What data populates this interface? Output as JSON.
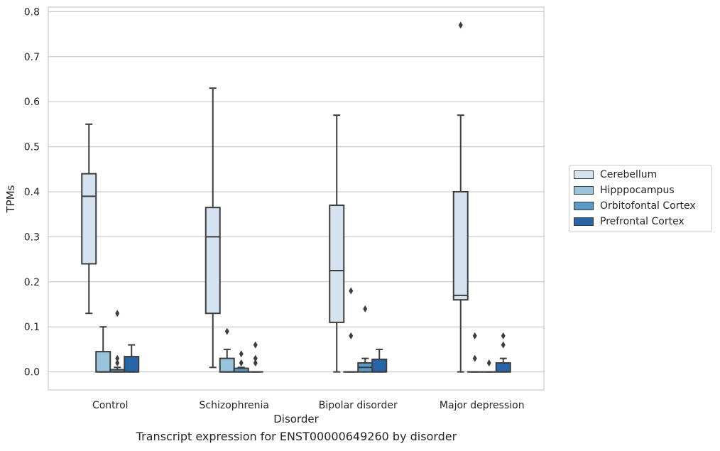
{
  "colors": {
    "Cerebellum": "#d5e3f0",
    "Hipppocampus": "#9ac3dc",
    "Orbitofontal Cortex": "#5a9ac8",
    "Prefrontal Cortex": "#2565a8"
  },
  "caption": "Transcript expression for ENST00000649260 by disorder",
  "chart_data": {
    "type": "box",
    "xlabel": "Disorder",
    "ylabel": "TPMs",
    "ylim": [
      -0.04,
      0.81
    ],
    "yticks": [
      "0.0",
      "0.1",
      "0.2",
      "0.3",
      "0.4",
      "0.5",
      "0.6",
      "0.7",
      "0.8"
    ],
    "grid": "horizontal",
    "legend_position": "right",
    "categories": [
      "Control",
      "Schizophrenia",
      "Bipolar disorder",
      "Major depression"
    ],
    "series": [
      {
        "name": "Cerebellum",
        "boxes": [
          {
            "whislo": 0.13,
            "q1": 0.24,
            "med": 0.39,
            "q3": 0.44,
            "whishi": 0.55,
            "fliers": []
          },
          {
            "whislo": 0.01,
            "q1": 0.13,
            "med": 0.3,
            "q3": 0.365,
            "whishi": 0.63,
            "fliers": []
          },
          {
            "whislo": 0.0,
            "q1": 0.11,
            "med": 0.225,
            "q3": 0.37,
            "whishi": 0.57,
            "fliers": []
          },
          {
            "whislo": 0.0,
            "q1": 0.16,
            "med": 0.17,
            "q3": 0.4,
            "whishi": 0.57,
            "fliers": [
              0.77
            ]
          }
        ]
      },
      {
        "name": "Hipppocampus",
        "boxes": [
          {
            "whislo": 0.0,
            "q1": 0.0,
            "med": 0.0,
            "q3": 0.045,
            "whishi": 0.1,
            "fliers": []
          },
          {
            "whislo": 0.0,
            "q1": 0.0,
            "med": 0.0,
            "q3": 0.03,
            "whishi": 0.05,
            "fliers": [
              0.09
            ]
          },
          {
            "whislo": 0.0,
            "q1": 0.0,
            "med": 0.0,
            "q3": 0.0,
            "whishi": 0.0,
            "fliers": [
              0.08,
              0.18
            ]
          },
          {
            "whislo": 0.0,
            "q1": 0.0,
            "med": 0.0,
            "q3": 0.0,
            "whishi": 0.0,
            "fliers": [
              0.03,
              0.08
            ]
          }
        ]
      },
      {
        "name": "Orbitofontal Cortex",
        "boxes": [
          {
            "whislo": 0.0,
            "q1": 0.0,
            "med": 0.0,
            "q3": 0.005,
            "whishi": 0.01,
            "fliers": [
              0.02,
              0.03,
              0.13
            ]
          },
          {
            "whislo": 0.0,
            "q1": 0.0,
            "med": 0.0,
            "q3": 0.008,
            "whishi": 0.01,
            "fliers": [
              0.02,
              0.04
            ]
          },
          {
            "whislo": 0.0,
            "q1": 0.0,
            "med": 0.01,
            "q3": 0.02,
            "whishi": 0.03,
            "fliers": [
              0.14
            ]
          },
          {
            "whislo": 0.0,
            "q1": 0.0,
            "med": 0.0,
            "q3": 0.0,
            "whishi": 0.0,
            "fliers": [
              0.02
            ]
          }
        ]
      },
      {
        "name": "Prefrontal Cortex",
        "boxes": [
          {
            "whislo": 0.0,
            "q1": 0.0,
            "med": 0.0,
            "q3": 0.034,
            "whishi": 0.06,
            "fliers": []
          },
          {
            "whislo": 0.0,
            "q1": 0.0,
            "med": 0.0,
            "q3": 0.0,
            "whishi": 0.0,
            "fliers": [
              0.02,
              0.03,
              0.06
            ]
          },
          {
            "whislo": 0.0,
            "q1": 0.0,
            "med": 0.0,
            "q3": 0.028,
            "whishi": 0.05,
            "fliers": []
          },
          {
            "whislo": 0.0,
            "q1": 0.0,
            "med": 0.0,
            "q3": 0.02,
            "whishi": 0.03,
            "fliers": [
              0.06,
              0.08
            ]
          }
        ]
      }
    ]
  }
}
